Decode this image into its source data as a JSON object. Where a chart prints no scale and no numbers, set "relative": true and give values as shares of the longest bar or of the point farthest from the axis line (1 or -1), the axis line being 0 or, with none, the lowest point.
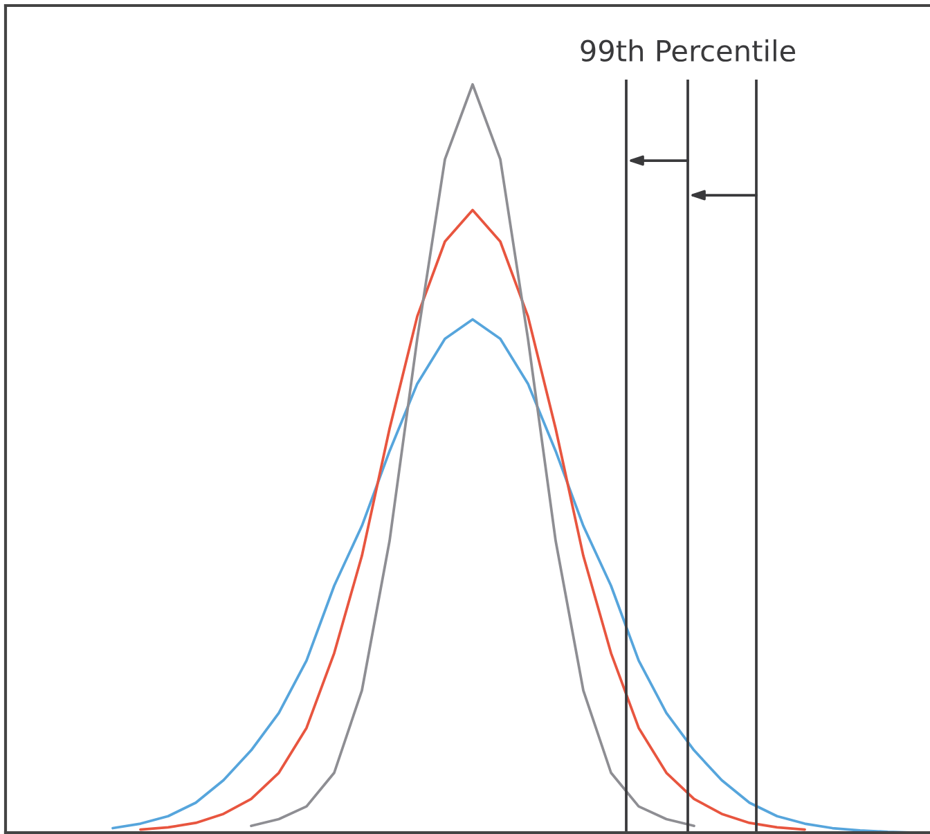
{
  "chart_data": {
    "type": "line",
    "relative": true,
    "categories": [
      null,
      null,
      null,
      null,
      null,
      null,
      null,
      null,
      null,
      null,
      null,
      null,
      null,
      null,
      null,
      null,
      null,
      null,
      null,
      null,
      null,
      null,
      null,
      null,
      null,
      null,
      null,
      null,
      null,
      null,
      null,
      null,
      null
    ],
    "series": [
      {
        "color": "#56a5dc",
        "values": [
          null,
          null,
          null,
          0.006,
          0.012,
          0.022,
          0.04,
          0.07,
          0.11,
          0.16,
          0.23,
          0.33,
          0.41,
          0.51,
          0.6,
          0.66,
          0.686,
          0.66,
          0.6,
          0.51,
          0.41,
          0.33,
          0.23,
          0.16,
          0.11,
          0.07,
          0.04,
          0.022,
          0.012,
          0.006,
          0.003,
          0.001,
          0.0
        ]
      },
      {
        "color": "#e8553f",
        "values": [
          null,
          null,
          null,
          null,
          0.004,
          0.007,
          0.013,
          0.025,
          0.045,
          0.08,
          0.14,
          0.24,
          0.37,
          0.54,
          0.69,
          0.79,
          0.832,
          0.79,
          0.69,
          0.54,
          0.37,
          0.24,
          0.14,
          0.08,
          0.045,
          0.025,
          0.013,
          0.007,
          0.004,
          null,
          null,
          null,
          null
        ]
      },
      {
        "color": "#8e8e93",
        "values": [
          null,
          null,
          null,
          null,
          null,
          null,
          null,
          null,
          0.009,
          0.018,
          0.035,
          0.08,
          0.19,
          0.39,
          0.66,
          0.9,
          1,
          0.9,
          0.66,
          0.39,
          0.19,
          0.08,
          0.035,
          0.018,
          0.009,
          null,
          null,
          null,
          null,
          null,
          null,
          null,
          null
        ]
      }
    ],
    "annotations": [
      "99th Percentile"
    ]
  }
}
